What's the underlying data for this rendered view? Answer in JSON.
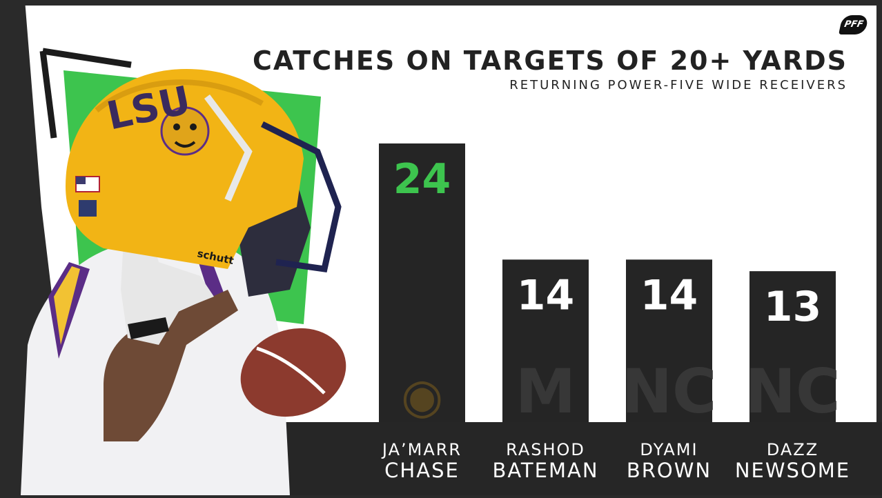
{
  "header": {
    "title": "CATCHES ON TARGETS OF 20+ YARDS",
    "subtitle": "RETURNING POWER-FIVE WIDE RECEIVERS",
    "brand": "PFF"
  },
  "colors": {
    "background": "#2a2a2a",
    "panel": "#ffffff",
    "bar": "#252525",
    "highlight": "#3dc44e",
    "value_text": "#ffffff",
    "label_text": "#ffffff"
  },
  "photo": {
    "helmet_lettering": "LSU",
    "brand_on_helmet": "schutt"
  },
  "chart_data": {
    "type": "bar",
    "title": "CATCHES ON TARGETS OF 20+ YARDS",
    "subtitle": "RETURNING POWER-FIVE WIDE RECEIVERS",
    "categories": [
      "JA'MARR CHASE",
      "RASHOD BATEMAN",
      "DYAMI BROWN",
      "DAZZ NEWSOME"
    ],
    "values": [
      24,
      14,
      14,
      13
    ],
    "labels": [
      [
        "JA’MARR",
        "CHASE"
      ],
      [
        "RASHOD",
        "BATEMAN"
      ],
      [
        "DYAMI",
        "BROWN"
      ],
      [
        "DAZZ",
        "NEWSOME"
      ]
    ],
    "highlighted_index": 0,
    "team_marks": [
      "tiger",
      "M",
      "NC",
      "NC"
    ],
    "xlabel": "",
    "ylabel": "",
    "ylim": [
      0,
      24
    ],
    "grid": false,
    "legend": "none"
  }
}
